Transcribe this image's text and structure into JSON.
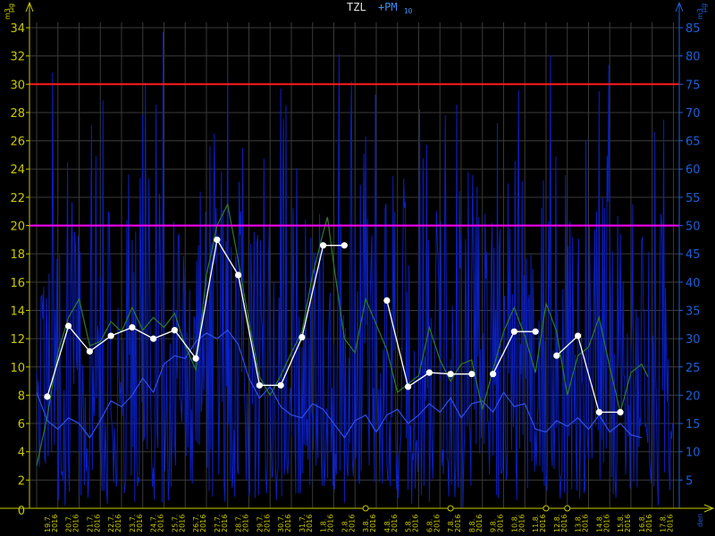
{
  "title": {
    "main": "TZL",
    "secondary": "+PM",
    "secondary_sub": "10"
  },
  "axes": {
    "left_unit_top": "μg",
    "left_unit_bottom": "m3",
    "right_unit_top": "μg",
    "right_unit_bottom": "m3",
    "x_unit": "den"
  },
  "colors": {
    "background": "#000000",
    "grid": "#3a3a3a",
    "left_axis": "#c8c800",
    "right_axis": "#1c5fd8",
    "limit_high": "#ff1a1a",
    "limit_mid": "#ff00ff",
    "tzl_line": "#2f7a2f",
    "tzl_daily": "#ffffff",
    "pm10_hourly": "#0a1fbf",
    "pm10_smooth": "#3050e8"
  },
  "chart_data": {
    "type": "line",
    "title": "TZL +PM10",
    "xlabel": "den",
    "y_left": {
      "min": 0,
      "max": 34,
      "ticks": [
        0,
        2,
        4,
        6,
        8,
        10,
        12,
        14,
        16,
        18,
        20,
        22,
        24,
        26,
        28,
        30,
        32,
        34
      ]
    },
    "y_right": {
      "min": 0,
      "max": 85,
      "ticks": [
        5,
        10,
        15,
        20,
        25,
        30,
        35,
        40,
        45,
        50,
        55,
        60,
        65,
        70,
        75,
        80,
        85
      ]
    },
    "x_labels": [
      [
        "19.7.",
        "2016"
      ],
      [
        "20.7.",
        "2016"
      ],
      [
        "21.7.",
        "2016"
      ],
      [
        "22.7.",
        "2016"
      ],
      [
        "23.7.",
        "2016"
      ],
      [
        "24.7.",
        "2016"
      ],
      [
        "25.7.",
        "2016"
      ],
      [
        "26.7.",
        "2016"
      ],
      [
        "27.7.",
        "2016"
      ],
      [
        "28.7.",
        "2016"
      ],
      [
        "29.7.",
        "2016"
      ],
      [
        "30.7.",
        "2016"
      ],
      [
        "31.7.",
        "2016"
      ],
      [
        "1.8.",
        "2016"
      ],
      [
        "2.8.",
        "2016"
      ],
      [
        "3.8.",
        "2016"
      ],
      [
        "4.8.",
        "2016"
      ],
      [
        "5.8.",
        "2016"
      ],
      [
        "6.8.",
        "2016"
      ],
      [
        "7.8.",
        "2016"
      ],
      [
        "8.8.",
        "2016"
      ],
      [
        "9.8.",
        "2016"
      ],
      [
        "10.8.",
        "2016"
      ],
      [
        "11.8.",
        "2016"
      ],
      [
        "12.8.",
        "2016"
      ],
      [
        "13.8.",
        "2016"
      ],
      [
        "14.8.",
        "2016"
      ],
      [
        "15.8.",
        "2016"
      ],
      [
        "16.8.",
        "2016"
      ],
      [
        "17.8.",
        "2016"
      ]
    ],
    "limit_lines": [
      {
        "axis": "left",
        "value": 30,
        "color": "#ff1a1a"
      },
      {
        "axis": "left",
        "value": 20,
        "color": "#ff00ff"
      }
    ],
    "series": [
      {
        "name": "TZL",
        "axis": "left",
        "kind": "daily_mean",
        "segments": [
          [
            [
              0.5,
              7.9
            ],
            [
              1.5,
              12.9
            ],
            [
              2.5,
              11.1
            ],
            [
              3.5,
              12.2
            ],
            [
              4.5,
              12.8
            ],
            [
              5.5,
              12.0
            ],
            [
              6.5,
              12.6
            ],
            [
              7.5,
              10.6
            ],
            [
              8.5,
              19.0
            ],
            [
              9.5,
              16.5
            ],
            [
              10.5,
              8.7
            ],
            [
              11.5,
              8.7
            ],
            [
              12.5,
              12.1
            ],
            [
              13.5,
              18.6
            ],
            [
              14.5,
              18.6
            ]
          ],
          [
            [
              16.5,
              14.7
            ],
            [
              17.5,
              8.6
            ],
            [
              18.5,
              9.6
            ],
            [
              19.5,
              9.5
            ],
            [
              20.5,
              9.5
            ]
          ],
          [
            [
              21.5,
              9.5
            ],
            [
              22.5,
              12.5
            ],
            [
              23.5,
              12.5
            ]
          ],
          [
            [
              24.5,
              10.8
            ],
            [
              25.5,
              12.2
            ],
            [
              26.5,
              6.8
            ],
            [
              27.5,
              6.8
            ]
          ]
        ]
      },
      {
        "name": "TZL",
        "axis": "left",
        "kind": "moving_average",
        "points": [
          [
            0.0,
            3.0
          ],
          [
            0.5,
            6.5
          ],
          [
            1.0,
            11.0
          ],
          [
            1.5,
            13.5
          ],
          [
            2.0,
            14.8
          ],
          [
            2.5,
            11.5
          ],
          [
            3.0,
            11.8
          ],
          [
            3.5,
            13.2
          ],
          [
            4.0,
            12.5
          ],
          [
            4.5,
            14.2
          ],
          [
            5.0,
            12.6
          ],
          [
            5.5,
            13.5
          ],
          [
            6.0,
            12.8
          ],
          [
            6.5,
            13.8
          ],
          [
            7.0,
            11.5
          ],
          [
            7.5,
            9.8
          ],
          [
            8.0,
            16.5
          ],
          [
            8.5,
            20.0
          ],
          [
            9.0,
            21.5
          ],
          [
            9.5,
            17.5
          ],
          [
            10.0,
            13.2
          ],
          [
            10.5,
            9.3
          ],
          [
            11.0,
            8.0
          ],
          [
            11.5,
            9.4
          ],
          [
            12.0,
            11.0
          ],
          [
            12.5,
            12.5
          ],
          [
            13.0,
            16.5
          ],
          [
            13.5,
            19.5
          ],
          [
            13.7,
            20.6
          ],
          [
            14.0,
            17.2
          ],
          [
            14.5,
            12.0
          ],
          [
            15.0,
            11.0
          ],
          [
            15.5,
            14.8
          ],
          [
            16.0,
            13.0
          ],
          [
            16.5,
            11.2
          ],
          [
            17.0,
            8.2
          ],
          [
            17.5,
            8.8
          ],
          [
            18.0,
            9.4
          ],
          [
            18.5,
            12.8
          ],
          [
            19.0,
            10.5
          ],
          [
            19.5,
            9.0
          ],
          [
            20.0,
            10.2
          ],
          [
            20.5,
            10.5
          ],
          [
            21.0,
            7.0
          ],
          [
            21.5,
            9.8
          ],
          [
            22.0,
            12.5
          ],
          [
            22.5,
            14.2
          ],
          [
            23.0,
            12.2
          ],
          [
            23.5,
            9.6
          ],
          [
            24.0,
            14.5
          ],
          [
            24.5,
            12.5
          ],
          [
            25.0,
            8.0
          ],
          [
            25.5,
            10.8
          ],
          [
            26.0,
            11.4
          ],
          [
            26.5,
            13.5
          ],
          [
            27.0,
            10.0
          ],
          [
            27.5,
            6.8
          ],
          [
            28.0,
            9.6
          ],
          [
            28.5,
            10.2
          ],
          [
            28.8,
            9.3
          ]
        ]
      },
      {
        "name": "PM10",
        "axis": "right",
        "kind": "smoothed",
        "points": [
          [
            0.0,
            20.5
          ],
          [
            0.5,
            15.5
          ],
          [
            1.0,
            14.0
          ],
          [
            1.5,
            16.0
          ],
          [
            2.0,
            15.0
          ],
          [
            2.5,
            12.5
          ],
          [
            3.0,
            15.5
          ],
          [
            3.5,
            19.0
          ],
          [
            4.0,
            18.0
          ],
          [
            4.5,
            20.0
          ],
          [
            5.0,
            23.0
          ],
          [
            5.5,
            20.5
          ],
          [
            6.0,
            25.5
          ],
          [
            6.5,
            27.0
          ],
          [
            7.0,
            26.5
          ],
          [
            7.5,
            29.5
          ],
          [
            8.0,
            31.0
          ],
          [
            8.5,
            30.0
          ],
          [
            9.0,
            31.5
          ],
          [
            9.5,
            29.0
          ],
          [
            10.0,
            23.0
          ],
          [
            10.5,
            19.5
          ],
          [
            11.0,
            21.5
          ],
          [
            11.5,
            18.0
          ],
          [
            12.0,
            16.5
          ],
          [
            12.5,
            16.0
          ],
          [
            13.0,
            18.5
          ],
          [
            13.5,
            17.5
          ],
          [
            14.0,
            15.0
          ],
          [
            14.5,
            12.5
          ],
          [
            15.0,
            15.5
          ],
          [
            15.5,
            16.5
          ],
          [
            16.0,
            13.5
          ],
          [
            16.5,
            16.5
          ],
          [
            17.0,
            17.5
          ],
          [
            17.5,
            15.0
          ],
          [
            18.0,
            16.5
          ],
          [
            18.5,
            18.5
          ],
          [
            19.0,
            17.0
          ],
          [
            19.5,
            19.5
          ],
          [
            20.0,
            16.0
          ],
          [
            20.5,
            18.5
          ],
          [
            21.0,
            19.0
          ],
          [
            21.5,
            17.0
          ],
          [
            22.0,
            20.5
          ],
          [
            22.5,
            18.0
          ],
          [
            23.0,
            18.5
          ],
          [
            23.5,
            14.0
          ],
          [
            24.0,
            13.5
          ],
          [
            24.5,
            15.5
          ],
          [
            25.0,
            14.5
          ],
          [
            25.5,
            16.0
          ],
          [
            26.0,
            14.0
          ],
          [
            26.5,
            16.5
          ],
          [
            27.0,
            13.5
          ],
          [
            27.5,
            15.0
          ],
          [
            28.0,
            13.0
          ],
          [
            28.5,
            12.5
          ]
        ]
      },
      {
        "name": "PM10",
        "axis": "right",
        "kind": "hourly",
        "range": [
          0,
          86
        ],
        "seed": 7
      }
    ],
    "markers": [
      {
        "x": 15.5,
        "y": 0,
        "symbol": "open-circle"
      },
      {
        "x": 19.5,
        "y": 0,
        "symbol": "open-circle"
      },
      {
        "x": 24.0,
        "y": 0,
        "symbol": "open-circle"
      },
      {
        "x": 25.0,
        "y": 0,
        "symbol": "open-circle"
      }
    ]
  }
}
